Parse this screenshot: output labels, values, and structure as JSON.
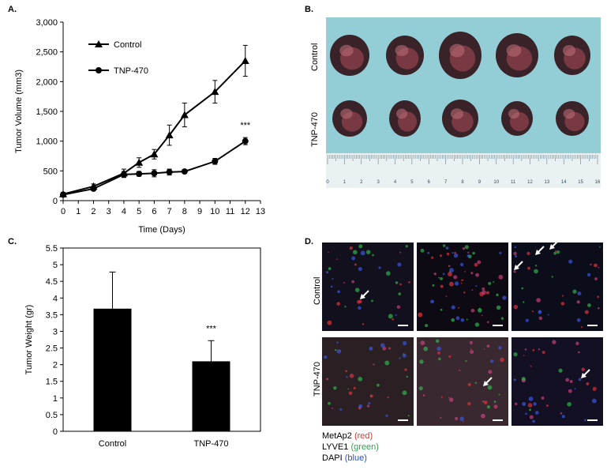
{
  "panels": {
    "a": "A.",
    "b": "B.",
    "c": "C.",
    "d": "D."
  },
  "chart_data": [
    {
      "type": "line",
      "xlabel": "Time (Days)",
      "ylabel": "Tumor Volume (mm3)",
      "xlim": [
        0,
        13
      ],
      "ylim": [
        0,
        3000
      ],
      "xticks": [
        0,
        1,
        2,
        3,
        4,
        5,
        6,
        7,
        8,
        9,
        10,
        11,
        12,
        13
      ],
      "yticks": [
        "0",
        "500",
        "1,000",
        "1,500",
        "2,000",
        "2,500",
        "3,000"
      ],
      "legend": "top-left",
      "annotation": "***",
      "series": [
        {
          "name": "Control",
          "marker": "triangle",
          "x": [
            0,
            2,
            4,
            5,
            6,
            7,
            8,
            10,
            12
          ],
          "y": [
            110,
            240,
            460,
            640,
            780,
            1100,
            1440,
            1830,
            2350
          ],
          "err": [
            30,
            40,
            70,
            80,
            80,
            170,
            200,
            190,
            260
          ]
        },
        {
          "name": "TNP-470",
          "marker": "circle",
          "x": [
            0,
            2,
            4,
            5,
            6,
            7,
            8,
            10,
            12
          ],
          "y": [
            100,
            200,
            440,
            450,
            460,
            480,
            490,
            660,
            1000
          ],
          "err": [
            20,
            30,
            50,
            40,
            60,
            50,
            30,
            50,
            60
          ]
        }
      ]
    },
    {
      "type": "bar",
      "xlabel": "",
      "ylabel": "Tumor Weight (gr)",
      "ylim": [
        0,
        5.5
      ],
      "yticks": [
        "0",
        "0.5",
        "1",
        "1.5",
        "2",
        "2.5",
        "3",
        "3.5",
        "4",
        "4.5",
        "5",
        "5.5"
      ],
      "categories": [
        "Control",
        "TNP-470"
      ],
      "values": [
        3.68,
        2.1
      ],
      "err": [
        1.1,
        0.62
      ],
      "annotation": "***",
      "bar_color": "#000000"
    }
  ],
  "panel_b": {
    "row_labels": [
      "Control",
      "TNP-470"
    ],
    "ruler_numbers": [
      "0",
      "1",
      "2",
      "3",
      "4",
      "5",
      "6",
      "7",
      "8",
      "9",
      "10",
      "11",
      "12",
      "13",
      "14",
      "15",
      "16"
    ]
  },
  "panel_d": {
    "row_labels": [
      "Control",
      "TNP-470"
    ],
    "legend": [
      {
        "name": "MetAp2",
        "color_word": "(red)",
        "color": "#e8332a"
      },
      {
        "name": "LYVE1",
        "color_word": "(green)",
        "color": "#2aa84a"
      },
      {
        "name": "DAPI",
        "color_word": "(blue)",
        "color": "#2b4fd6"
      }
    ]
  }
}
